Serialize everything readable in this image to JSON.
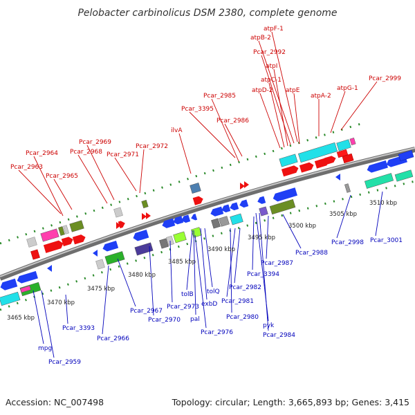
{
  "title": "Pelobacter carbinolicus DSM 2380, complete genome",
  "footer": {
    "accession": "Accession: NC_007498",
    "topology": "Topology: circular; Length: 3,665,893 bp; Genes: 3,415"
  },
  "colors": {
    "forward_label": "#cc0000",
    "reverse_label": "#0000bb",
    "backbone": "#8a8a8a",
    "tick": "#2a8a2a"
  },
  "kbp_ticks": [
    "3465 kbp",
    "3470 kbp",
    "3475 kbp",
    "3480 kbp",
    "3485 kbp",
    "3490 kbp",
    "3495 kbp",
    "3500 kbp",
    "3505 kbp",
    "3510 kbp"
  ],
  "forward_labels": [
    "atpF-1",
    "atpB-2",
    "Pcar_2992",
    "atpI",
    "atpC-1",
    "atpD-2",
    "atpE",
    "atpA-2",
    "atpG-1",
    "Pcar_2999",
    "Pcar_2985",
    "Pcar_3395",
    "Pcar_2986",
    "ilvA",
    "Pcar_2969",
    "Pcar_2968",
    "Pcar_2972",
    "Pcar_2971",
    "Pcar_2964",
    "Pcar_2963",
    "Pcar_2965"
  ],
  "reverse_labels": [
    "Pcar_3001",
    "Pcar_2998",
    "Pcar_2988",
    "Pcar_2987",
    "Pcar_3394",
    "Pcar_2982",
    "Pcar_2981",
    "Pcar_2980",
    "pyk",
    "Pcar_2984",
    "tolQ",
    "exbD",
    "tolB",
    "pal",
    "Pcar_2976",
    "Pcar_2973",
    "Pcar_2970",
    "Pcar_2967",
    "Pcar_2966",
    "Pcar_3393",
    "mpg",
    "Pcar_2959"
  ]
}
